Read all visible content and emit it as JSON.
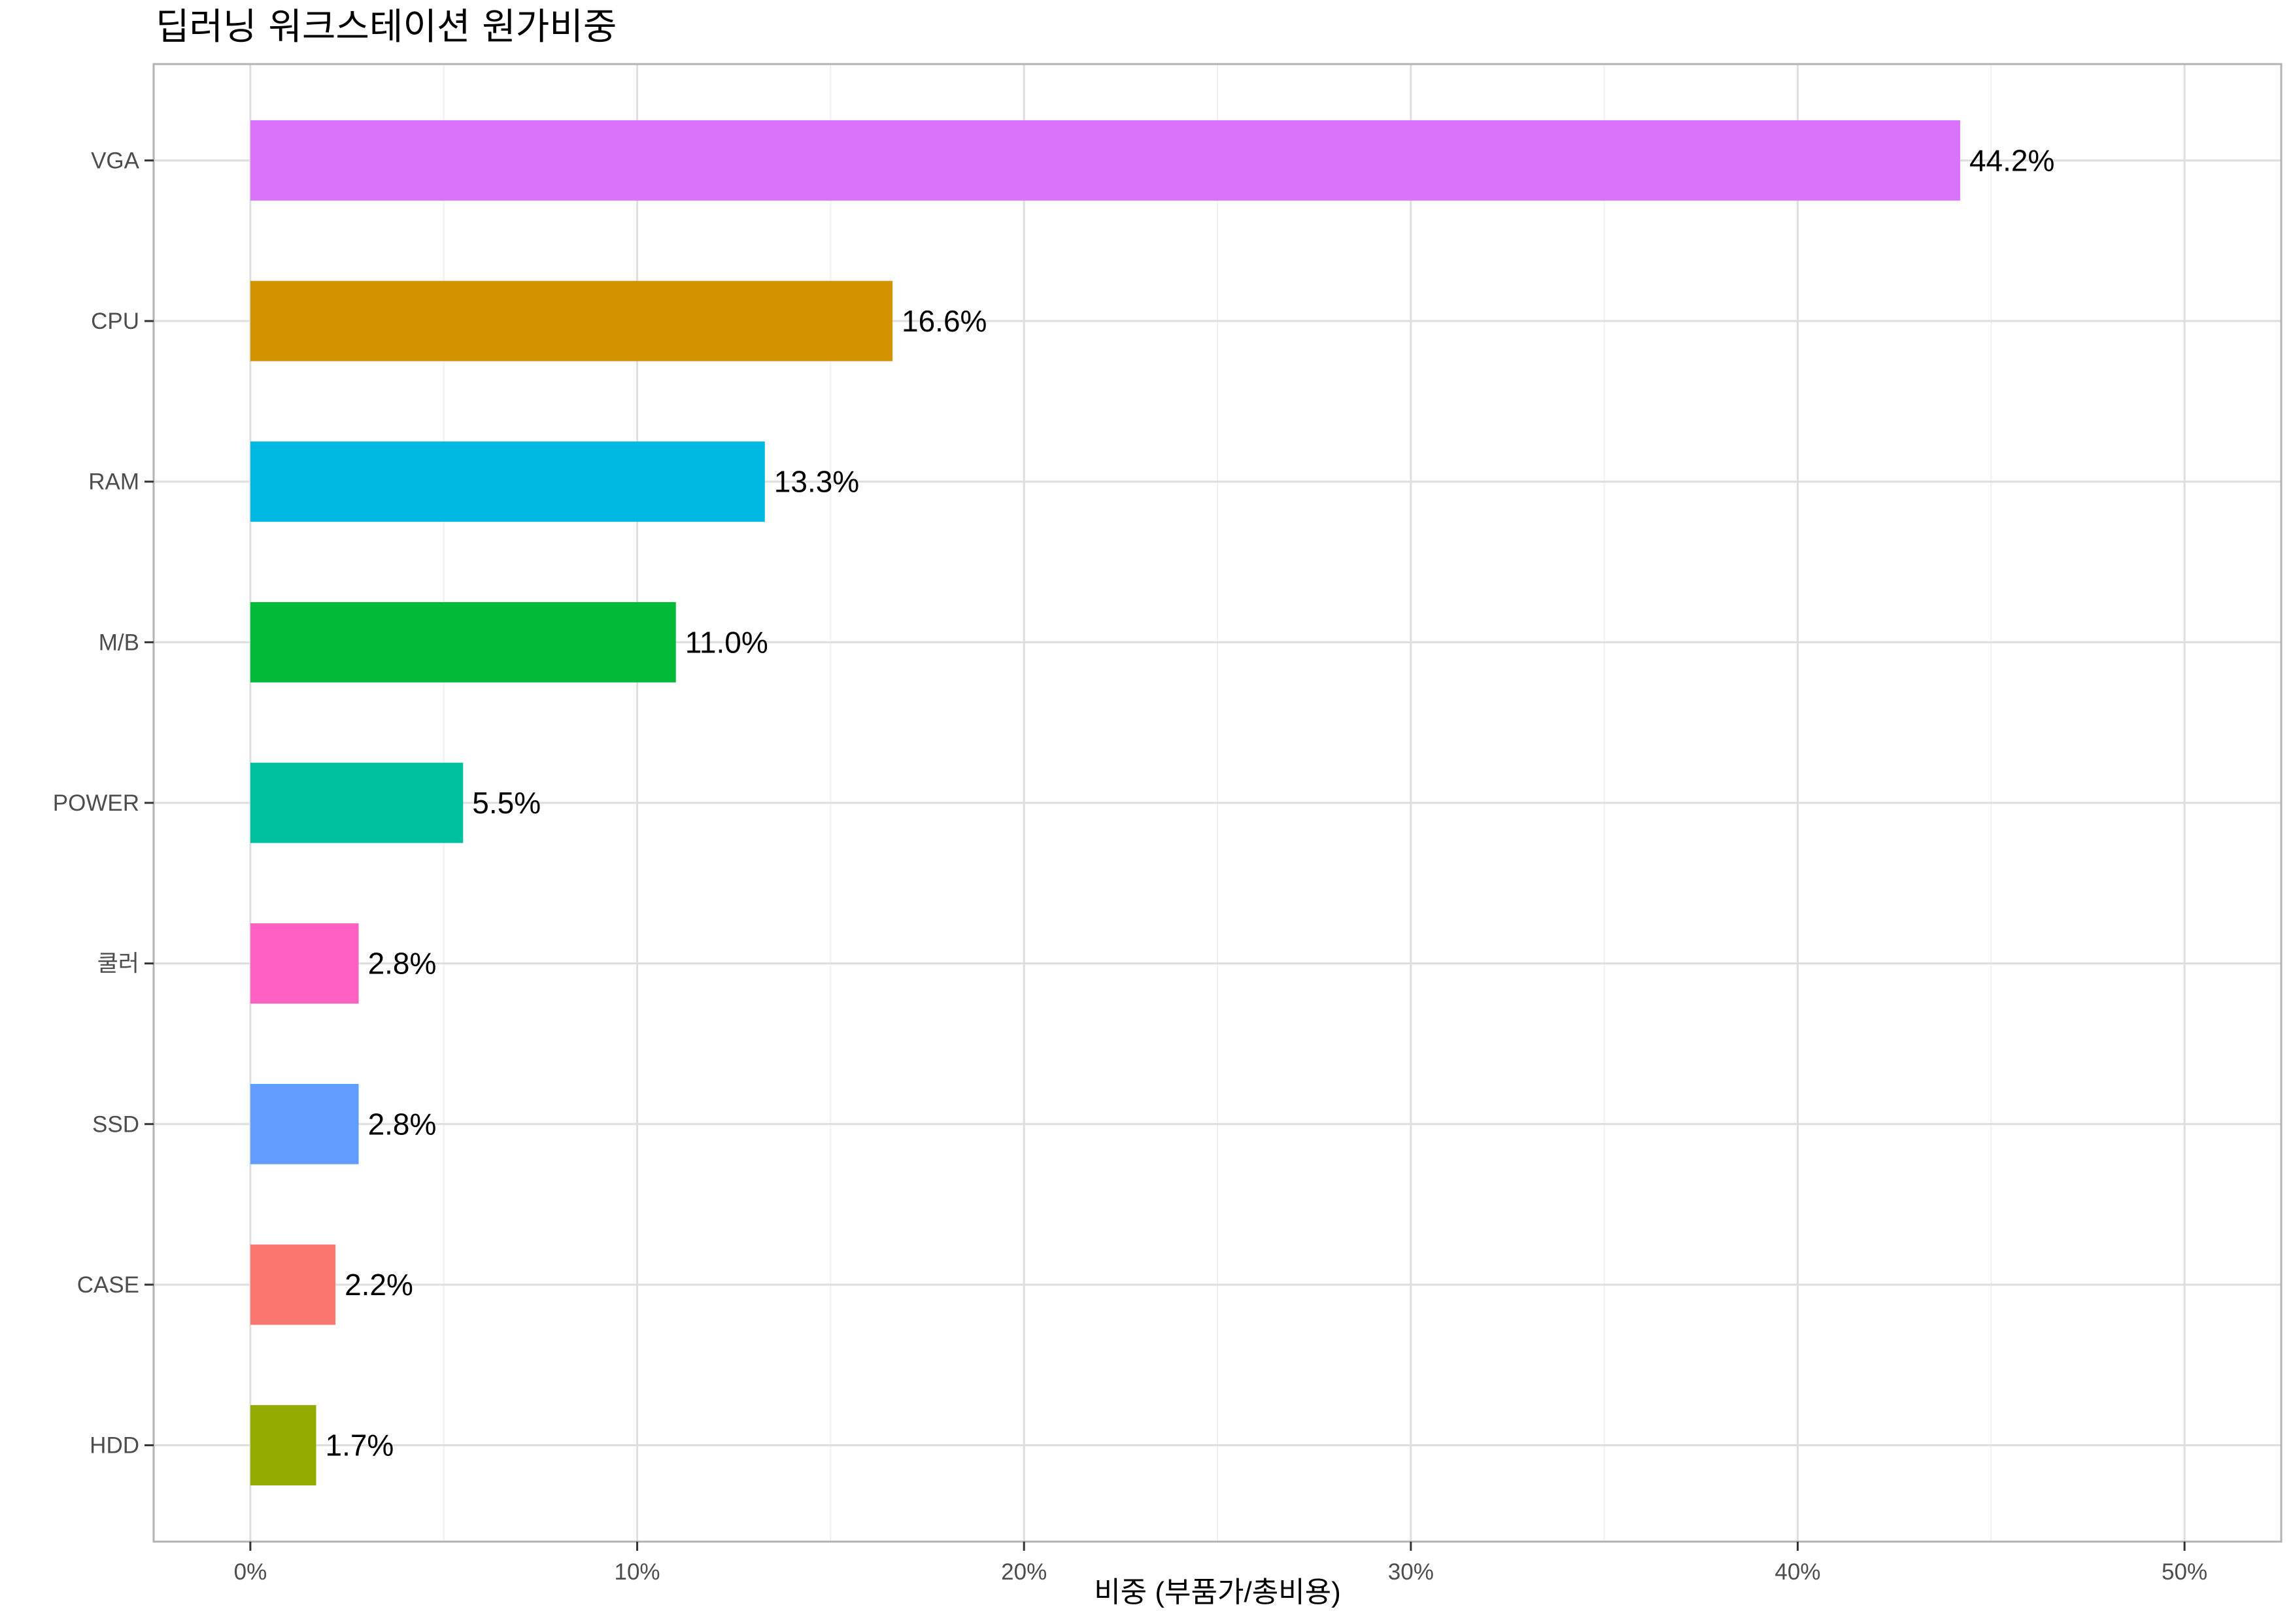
{
  "chart_data": {
    "type": "bar",
    "orientation": "horizontal",
    "title": "딥러닝 워크스테이션 원가비중",
    "xlabel": "비중 (부품가/총비용)",
    "ylabel": "",
    "xlim": [
      -0.025,
      0.525
    ],
    "x_ticks": [
      0,
      0.1,
      0.2,
      0.3,
      0.4,
      0.5
    ],
    "x_tick_labels": [
      "0%",
      "10%",
      "20%",
      "30%",
      "40%",
      "50%"
    ],
    "grid": true,
    "legend": "none",
    "categories": [
      "VGA",
      "CPU",
      "RAM",
      "M/B",
      "POWER",
      "쿨러",
      "SSD",
      "CASE",
      "HDD"
    ],
    "values": [
      0.442,
      0.166,
      0.133,
      0.11,
      0.055,
      0.028,
      0.028,
      0.022,
      0.017
    ],
    "value_labels": [
      "44.2%",
      "16.6%",
      "13.3%",
      "11.0%",
      "5.5%",
      "2.8%",
      "2.8%",
      "2.2%",
      "1.7%"
    ],
    "colors": [
      "#DB72FB",
      "#D39200",
      "#00B9E3",
      "#00BA38",
      "#00C19F",
      "#FF61C3",
      "#619CFF",
      "#F8766D",
      "#93AA00"
    ]
  }
}
